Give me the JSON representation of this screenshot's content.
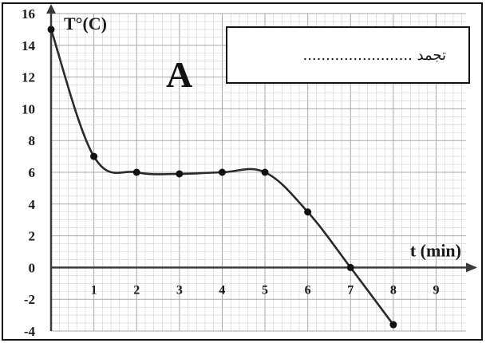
{
  "chart_data": {
    "type": "line",
    "panel_label": "A",
    "ylabel": "T°(C)",
    "xlabel": "t (min)",
    "xlim": [
      0,
      9.7
    ],
    "ylim": [
      -4,
      16
    ],
    "x_ticks": [
      "1",
      "2",
      "3",
      "4",
      "5",
      "6",
      "7",
      "8",
      "9"
    ],
    "y_ticks": [
      "16",
      "14",
      "12",
      "10",
      "8",
      "6",
      "4",
      "2",
      "0",
      "-2",
      "-4"
    ],
    "grid": true,
    "series": [
      {
        "x": [
          0,
          1,
          2,
          3,
          4,
          5,
          6,
          7,
          8
        ],
        "y": [
          15,
          7,
          6,
          5.9,
          6,
          6,
          3.5,
          0,
          -3.6
        ]
      }
    ],
    "colors": {
      "line": "#2a2a2a",
      "grid_minor": "#d0d0d0",
      "grid_major": "#a8a8a8",
      "axis": "#3a3a3a"
    }
  },
  "answer_box": {
    "text": "تجمد ........................"
  }
}
